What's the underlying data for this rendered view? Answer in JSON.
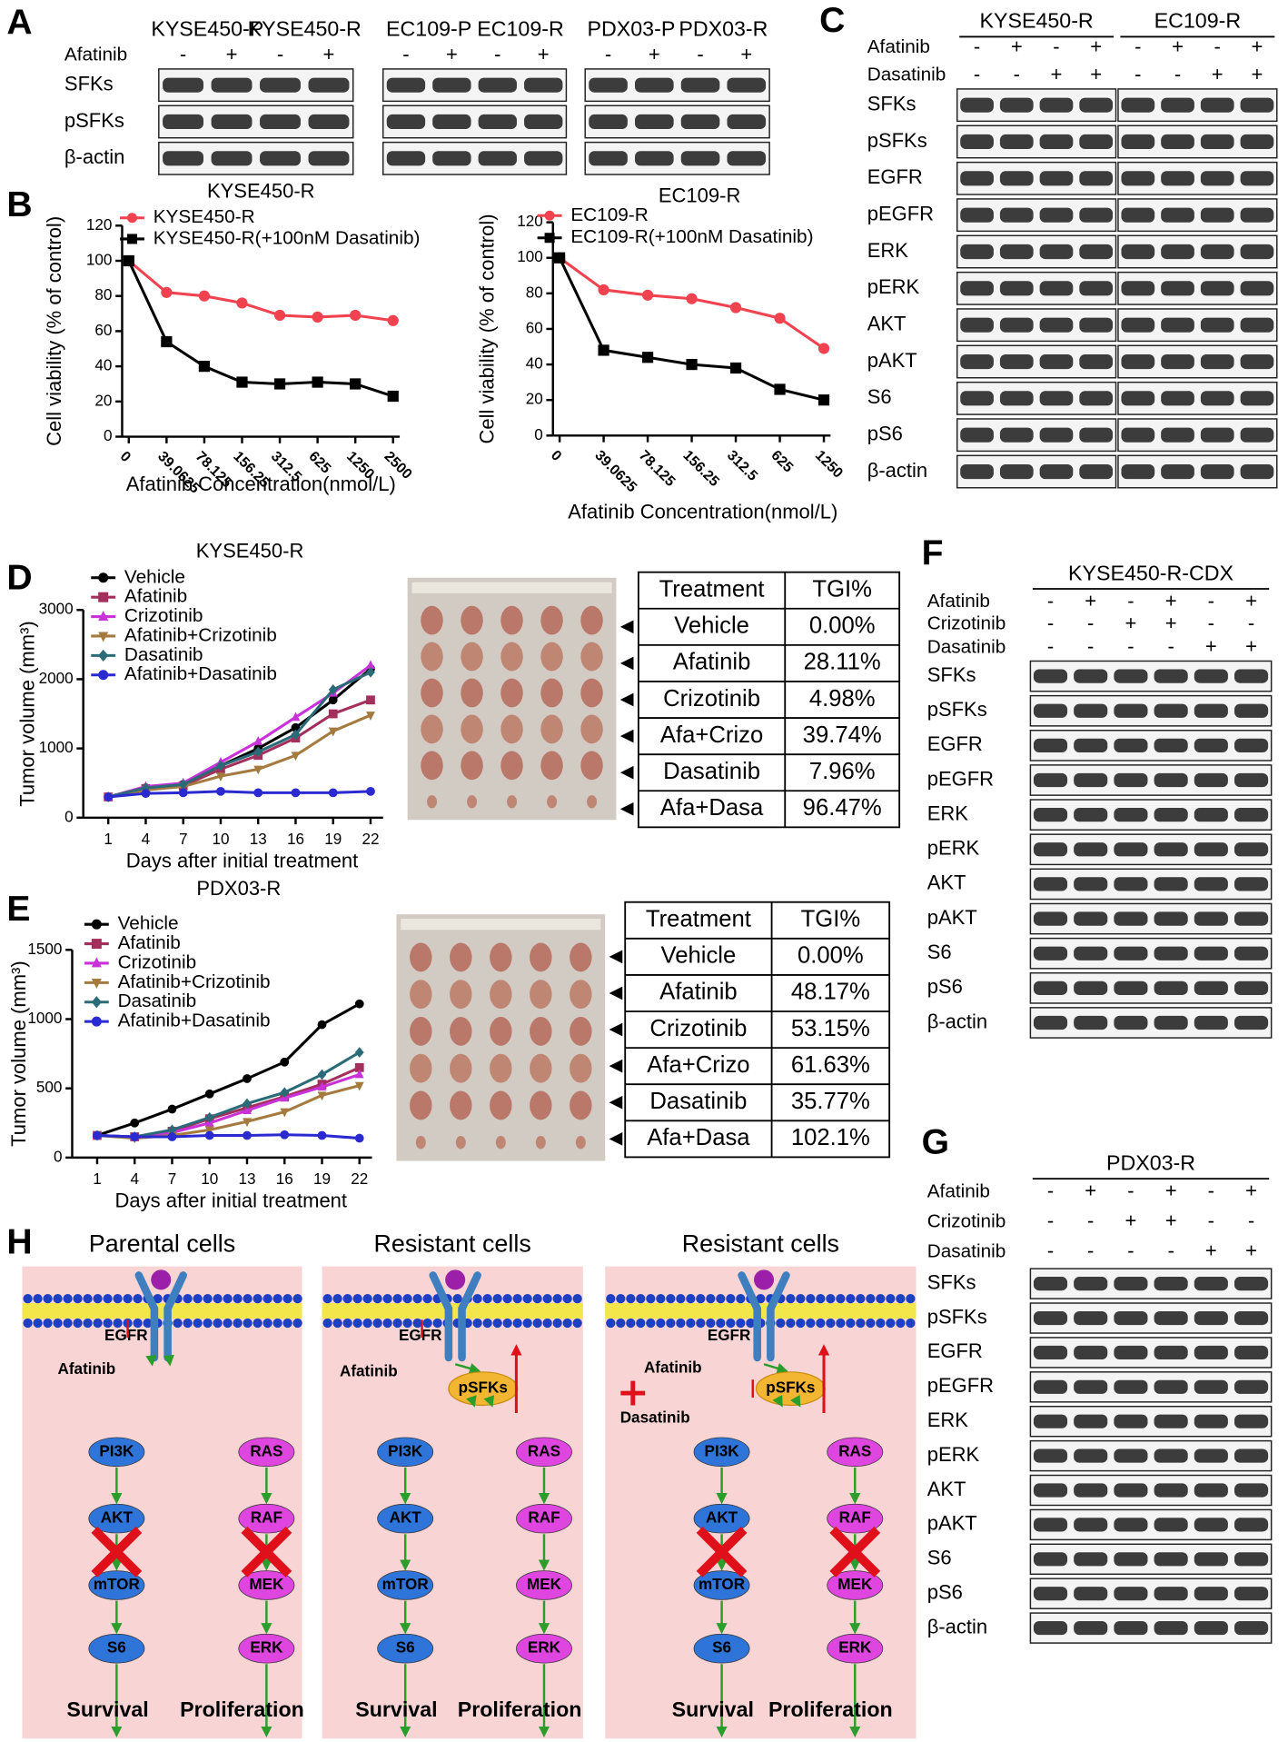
{
  "panel_letters": [
    "A",
    "B",
    "C",
    "D",
    "E",
    "F",
    "G",
    "H"
  ],
  "panel_a": {
    "cell_lines": [
      "KYSE450-P",
      "KYSE450-R",
      "EC109-P",
      "EC109-R",
      "PDX03-P",
      "PDX03-R"
    ],
    "treatments": [
      {
        "name": "Afatinib",
        "signs": [
          "-",
          "+",
          "-",
          "+",
          "-",
          "+",
          "-",
          "+",
          "-",
          "+",
          "-",
          "+"
        ]
      }
    ],
    "proteins": [
      "SFKs",
      "pSFKs",
      "β-actin"
    ]
  },
  "panel_c": {
    "cell_lines": [
      "KYSE450-R",
      "EC109-R"
    ],
    "treatments": [
      {
        "name": "Afatinib",
        "signs": [
          "-",
          "+",
          "-",
          "+",
          "-",
          "+",
          "-",
          "+"
        ]
      },
      {
        "name": "Dasatinib",
        "signs": [
          "-",
          "-",
          "+",
          "+",
          "-",
          "-",
          "+",
          "+"
        ]
      }
    ],
    "proteins": [
      "SFKs",
      "pSFKs",
      "EGFR",
      "pEGFR",
      "ERK",
      "pERK",
      "AKT",
      "pAKT",
      "S6",
      "pS6",
      "β-actin"
    ]
  },
  "panel_f": {
    "cell_lines": [
      "KYSE450-R-CDX"
    ],
    "treatments": [
      {
        "name": "Afatinib",
        "signs": [
          "-",
          "+",
          "-",
          "+",
          "-",
          "+"
        ]
      },
      {
        "name": "Crizotinib",
        "signs": [
          "-",
          "-",
          "+",
          "+",
          "-",
          "-"
        ]
      },
      {
        "name": "Dasatinib",
        "signs": [
          "-",
          "-",
          "-",
          "-",
          "+",
          "+"
        ]
      }
    ],
    "proteins": [
      "SFKs",
      "pSFKs",
      "EGFR",
      "pEGFR",
      "ERK",
      "pERK",
      "AKT",
      "pAKT",
      "S6",
      "pS6",
      "β-actin"
    ]
  },
  "panel_g": {
    "cell_lines": [
      "PDX03-R"
    ],
    "treatments": [
      {
        "name": "Afatinib",
        "signs": [
          "-",
          "+",
          "-",
          "+",
          "-",
          "+"
        ]
      },
      {
        "name": "Crizotinib",
        "signs": [
          "-",
          "-",
          "+",
          "+",
          "-",
          "-"
        ]
      },
      {
        "name": "Dasatinib",
        "signs": [
          "-",
          "-",
          "-",
          "-",
          "+",
          "+"
        ]
      }
    ],
    "proteins": [
      "SFKs",
      "pSFKs",
      "EGFR",
      "pEGFR",
      "ERK",
      "pERK",
      "AKT",
      "pAKT",
      "S6",
      "pS6",
      "β-actin"
    ]
  },
  "chart_data": [
    {
      "type": "line",
      "title": "KYSE450-R",
      "xlabel": "Afatinib Concentration(nmol/L)",
      "ylabel": "Cell viability (% of control)",
      "categories": [
        "0",
        "39.0625",
        "78.125",
        "156.25",
        "312.5",
        "625",
        "1250",
        "2500"
      ],
      "ylim": [
        0,
        120
      ],
      "yticks": [
        0,
        20,
        40,
        60,
        80,
        100,
        120
      ],
      "legend": "top-left",
      "series": [
        {
          "name": "KYSE450-R",
          "color": "#f0424f",
          "marker": "circle",
          "values": [
            100,
            82,
            80,
            76,
            69,
            68,
            69,
            66
          ]
        },
        {
          "name": "KYSE450-R(+100nM Dasatinib)",
          "color": "#000000",
          "marker": "square",
          "values": [
            100,
            54,
            40,
            31,
            30,
            31,
            30,
            23
          ]
        }
      ]
    },
    {
      "type": "line",
      "title": "EC109-R",
      "xlabel": "Afatinib Concentration(nmol/L)",
      "ylabel": "Cell viability (% of control)",
      "categories": [
        "0",
        "39.0625",
        "78.125",
        "156.25",
        "312.5",
        "625",
        "1250"
      ],
      "ylim": [
        0,
        120
      ],
      "yticks": [
        0,
        20,
        40,
        60,
        80,
        100,
        120
      ],
      "legend": "top-left",
      "series": [
        {
          "name": "EC109-R",
          "color": "#f0424f",
          "marker": "circle",
          "values": [
            100,
            82,
            79,
            77,
            72,
            66,
            49
          ]
        },
        {
          "name": "EC109-R(+100nM Dasatinib)",
          "color": "#000000",
          "marker": "square",
          "values": [
            100,
            48,
            44,
            40,
            38,
            26,
            20
          ]
        }
      ]
    },
    {
      "type": "line",
      "title": "KYSE450-R",
      "xlabel": "Days after initial treatment",
      "ylabel": "Tumor volume (mm³)",
      "x": [
        1,
        4,
        7,
        10,
        13,
        16,
        19,
        22
      ],
      "xlim": [
        -1,
        23
      ],
      "xticks": [
        1,
        4,
        7,
        10,
        13,
        16,
        19,
        22
      ],
      "ylim": [
        0,
        3000
      ],
      "yticks": [
        0,
        1000,
        2000,
        3000
      ],
      "legend": "top-left",
      "series": [
        {
          "name": "Vehicle",
          "color": "#000000",
          "marker": "circle",
          "values": [
            300,
            430,
            480,
            750,
            1000,
            1300,
            1700,
            2150
          ]
        },
        {
          "name": "Afatinib",
          "color": "#a3305c",
          "marker": "square",
          "values": [
            300,
            420,
            460,
            700,
            900,
            1150,
            1500,
            1700
          ]
        },
        {
          "name": "Crizotinib",
          "color": "#c832d8",
          "marker": "triangle",
          "values": [
            300,
            450,
            500,
            800,
            1100,
            1450,
            1800,
            2200
          ]
        },
        {
          "name": "Afatinib+Crizotinib",
          "color": "#a57a3e",
          "marker": "triangle-down",
          "values": [
            300,
            400,
            450,
            600,
            700,
            900,
            1250,
            1480
          ]
        },
        {
          "name": "Dasatinib",
          "color": "#2b6b78",
          "marker": "diamond",
          "values": [
            300,
            430,
            480,
            750,
            950,
            1200,
            1850,
            2100
          ]
        },
        {
          "name": "Afatinib+Dasatinib",
          "color": "#2a2ad0",
          "marker": "circle",
          "values": [
            300,
            350,
            360,
            380,
            360,
            360,
            360,
            380
          ]
        }
      ]
    },
    {
      "type": "line",
      "title": "PDX03-R",
      "xlabel": "Days after initial treatment",
      "ylabel": "Tumor volume (mm³)",
      "x": [
        1,
        4,
        7,
        10,
        13,
        16,
        19,
        22
      ],
      "xlim": [
        -1,
        23
      ],
      "xticks": [
        1,
        4,
        7,
        10,
        13,
        16,
        19,
        22
      ],
      "ylim": [
        0,
        1500
      ],
      "yticks": [
        0,
        500,
        1000,
        1500
      ],
      "legend": "top-left",
      "series": [
        {
          "name": "Vehicle",
          "color": "#000000",
          "marker": "circle",
          "values": [
            160,
            250,
            350,
            460,
            570,
            690,
            960,
            1110
          ]
        },
        {
          "name": "Afatinib",
          "color": "#a3305c",
          "marker": "square",
          "values": [
            160,
            150,
            190,
            280,
            360,
            440,
            530,
            650
          ]
        },
        {
          "name": "Crizotinib",
          "color": "#c832d8",
          "marker": "triangle",
          "values": [
            160,
            150,
            180,
            250,
            340,
            430,
            510,
            600
          ]
        },
        {
          "name": "Afatinib+Crizotinib",
          "color": "#a57a3e",
          "marker": "triangle-down",
          "values": [
            160,
            140,
            160,
            200,
            260,
            330,
            450,
            520
          ]
        },
        {
          "name": "Dasatinib",
          "color": "#2b6b78",
          "marker": "diamond",
          "values": [
            160,
            150,
            200,
            290,
            390,
            470,
            600,
            760
          ]
        },
        {
          "name": "Afatinib+Dasatinib",
          "color": "#2a2ad0",
          "marker": "circle",
          "values": [
            160,
            150,
            150,
            160,
            160,
            165,
            160,
            140
          ]
        }
      ]
    }
  ],
  "table_d": {
    "columns": [
      "Treatment",
      "TGI%"
    ],
    "rows": [
      [
        "Vehicle",
        "0.00%"
      ],
      [
        "Afatinib",
        "28.11%"
      ],
      [
        "Crizotinib",
        "4.98%"
      ],
      [
        "Afa+Crizo",
        "39.74%"
      ],
      [
        "Dasatinib",
        "7.96%"
      ],
      [
        "Afa+Dasa",
        "96.47%"
      ]
    ]
  },
  "table_e": {
    "columns": [
      "Treatment",
      "TGI%"
    ],
    "rows": [
      [
        "Vehicle",
        "0.00%"
      ],
      [
        "Afatinib",
        "48.17%"
      ],
      [
        "Crizotinib",
        "53.15%"
      ],
      [
        "Afa+Crizo",
        "61.63%"
      ],
      [
        "Dasatinib",
        "35.77%"
      ],
      [
        "Afa+Dasa",
        "102.1%"
      ]
    ]
  },
  "panel_h": {
    "panels": [
      {
        "title": "Parental cells",
        "receptor": "EGFR",
        "inhibitors": [
          "Afatinib"
        ],
        "left": [
          "PI3K",
          "AKT",
          "mTOR",
          "S6"
        ],
        "right": [
          "RAS",
          "RAF",
          "MEK",
          "ERK"
        ],
        "outputs": [
          "Survival",
          "Proliferation"
        ]
      },
      {
        "title": "Resistant cells",
        "receptor": "EGFR",
        "inhibitors": [
          "Afatinib"
        ],
        "hub": "pSFKs",
        "left": [
          "PI3K",
          "AKT",
          "mTOR",
          "S6"
        ],
        "right": [
          "RAS",
          "RAF",
          "MEK",
          "ERK"
        ],
        "outputs": [
          "Survival",
          "Proliferation"
        ]
      },
      {
        "title": "Resistant cells",
        "receptor": "EGFR",
        "inhibitors": [
          "Afatinib",
          "Dasatinib"
        ],
        "hub": "pSFKs",
        "left": [
          "PI3K",
          "AKT",
          "mTOR",
          "S6"
        ],
        "right": [
          "RAS",
          "RAF",
          "MEK",
          "ERK"
        ],
        "outputs": [
          "Survival",
          "Proliferation"
        ]
      }
    ]
  }
}
